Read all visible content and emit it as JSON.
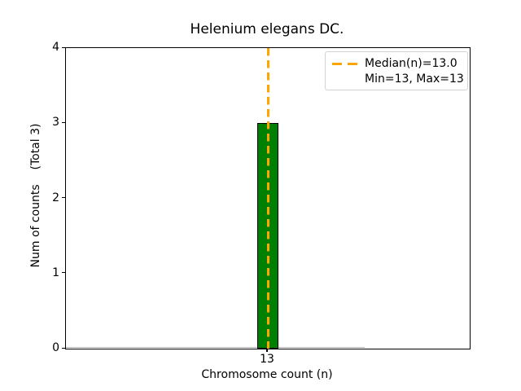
{
  "chart_data": {
    "type": "bar",
    "title": "Helenium elegans DC.",
    "xlabel": "Chromosome count (n)",
    "ylabel": "Num of counts    (Total 3)",
    "categories": [
      "13"
    ],
    "values": [
      3
    ],
    "total_counts": 3,
    "median_n": "13.0",
    "min_n": 13,
    "max_n": 13,
    "ylim": [
      0,
      4
    ],
    "yticks": [
      0,
      1,
      2,
      3,
      4
    ],
    "ytick_labels_top_to_bottom": [
      "4",
      "3",
      "2",
      "1",
      "0"
    ],
    "xtick_labels": [
      "13"
    ],
    "grid": false,
    "legend": {
      "position": "upper right",
      "entries": [
        {
          "sample": "orange-dashed-line",
          "label": "Median(n)=13.0"
        },
        {
          "sample": "none",
          "label": "Min=13, Max=13"
        }
      ]
    },
    "colors": {
      "bar_fill": "#008000",
      "bar_edge": "#000000",
      "median_line": "#FFA500",
      "legend_border": "#d3d3d3",
      "background": "#ffffff"
    }
  }
}
